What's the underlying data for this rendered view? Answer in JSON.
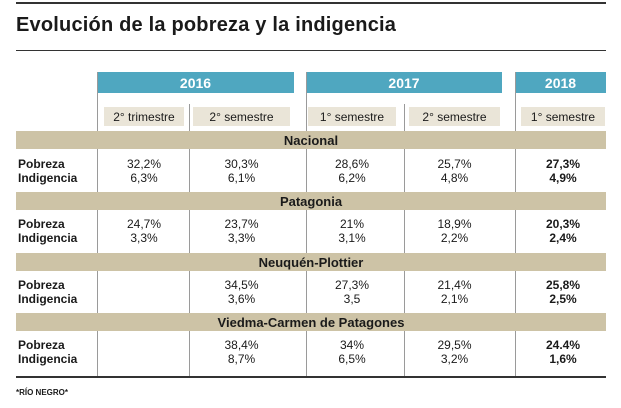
{
  "title": "Evolución de la pobreza y la indigencia",
  "years": [
    "2016",
    "2017",
    "2018"
  ],
  "periods": [
    "2° trimestre",
    "2° semestre",
    "1° semestre",
    "2° semestre",
    "1° semestre"
  ],
  "row_labels": {
    "pobreza": "Pobreza",
    "indigencia": "Indigencia"
  },
  "regions": [
    {
      "name": "Nacional",
      "pobreza": [
        "32,2%",
        "30,3%",
        "28,6%",
        "25,7%",
        "27,3%"
      ],
      "indigencia": [
        "6,3%",
        "6,1%",
        "6,2%",
        "4,8%",
        "4,9%"
      ]
    },
    {
      "name": "Patagonia",
      "pobreza": [
        "24,7%",
        "23,7%",
        "21%",
        "18,9%",
        "20,3%"
      ],
      "indigencia": [
        "3,3%",
        "3,3%",
        "3,1%",
        "2,2%",
        "2,4%"
      ]
    },
    {
      "name": "Neuquén-Plottier",
      "pobreza": [
        "",
        "34,5%",
        "27,3%",
        "21,4%",
        "25,8%"
      ],
      "indigencia": [
        "",
        "3,6%",
        "3,5",
        "2,1%",
        "2,5%"
      ]
    },
    {
      "name": "Viedma-Carmen de Patagones",
      "pobreza": [
        "",
        "38,4%",
        "34%",
        "29,5%",
        "24.4%"
      ],
      "indigencia": [
        "",
        "8,7%",
        "6,5%",
        "3,2%",
        "1,6%"
      ]
    }
  ],
  "footnote": "*RÍO NEGRO*"
}
